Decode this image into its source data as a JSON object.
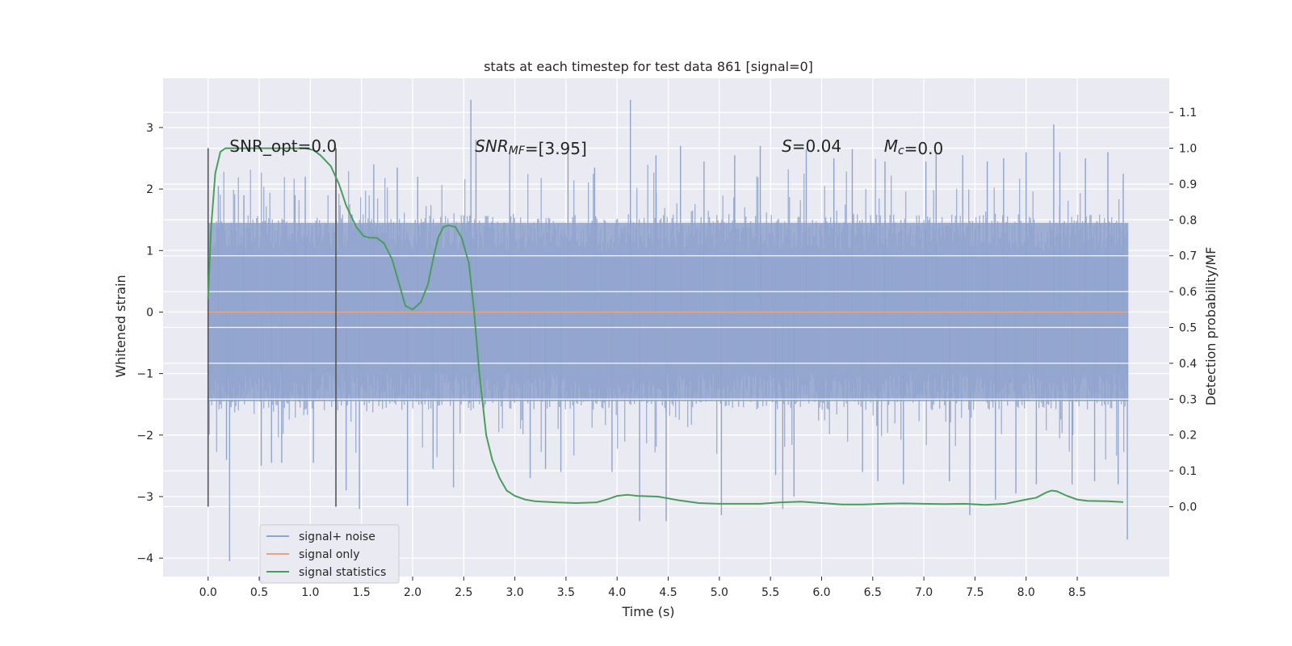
{
  "chart_data": {
    "type": "line",
    "title": "stats at each timestep for test data 861 [signal=0]",
    "xlabel": "Time (s)",
    "ylabel": "Whitened strain",
    "y2label": "Detection probability/MF",
    "xlim": [
      -0.44,
      9.4
    ],
    "ylim": [
      -4.3,
      3.8
    ],
    "y2lim": [
      -0.195,
      1.195
    ],
    "x_ticks": [
      0.0,
      0.5,
      1.0,
      1.5,
      2.0,
      2.5,
      3.0,
      3.5,
      4.0,
      4.5,
      5.0,
      5.5,
      6.0,
      6.5,
      7.0,
      7.5,
      8.0,
      8.5
    ],
    "x_tick_labels": [
      "0.0",
      "0.5",
      "1.0",
      "1.5",
      "2.0",
      "2.5",
      "3.0",
      "3.5",
      "4.0",
      "4.5",
      "5.0",
      "5.5",
      "6.0",
      "6.5",
      "7.0",
      "7.5",
      "8.0",
      "8.5"
    ],
    "y_ticks": [
      -4,
      -3,
      -2,
      -1,
      0,
      1,
      2,
      3
    ],
    "y_tick_labels": [
      "−4",
      "−3",
      "−2",
      "−1",
      "0",
      "1",
      "2",
      "3"
    ],
    "y2_ticks": [
      0.0,
      0.1,
      0.2,
      0.3,
      0.4,
      0.5,
      0.6,
      0.7,
      0.8,
      0.9,
      1.0,
      1.1
    ],
    "y2_tick_labels": [
      "0.0",
      "0.1",
      "0.2",
      "0.3",
      "0.4",
      "0.5",
      "0.6",
      "0.7",
      "0.8",
      "0.9",
      "1.0",
      "1.1"
    ],
    "grid": true,
    "legend_position": "lower-left",
    "vlines": [
      {
        "x": 0.0,
        "y2_from": 0.0,
        "y2_to": 1.0
      },
      {
        "x": 1.25,
        "y2_from": 0.0,
        "y2_to": 1.0
      }
    ],
    "annotations": [
      {
        "x": 0.21,
        "y2": 0.99,
        "parts": [
          {
            "t": "SNR_opt=0.0"
          }
        ]
      },
      {
        "x": 2.61,
        "y2": 0.99,
        "parts": [
          {
            "t": "SNR",
            "style": "italic"
          },
          {
            "t": "MF",
            "style": "italic-sub"
          },
          {
            "t": "=[3.95]"
          }
        ]
      },
      {
        "x": 5.61,
        "y2": 0.99,
        "parts": [
          {
            "t": "S",
            "style": "italic"
          },
          {
            "t": "=0.04"
          }
        ]
      },
      {
        "x": 6.61,
        "y2": 0.99,
        "parts": [
          {
            "t": "M",
            "style": "italic"
          },
          {
            "t": "c",
            "style": "italic-sub"
          },
          {
            "t": "=0.0"
          }
        ]
      }
    ],
    "series": [
      {
        "name": "signal+ noise",
        "color": "#8fa3cc",
        "axis": "left",
        "x_range": [
          0.0,
          9.0
        ],
        "band": [
          -1.45,
          1.45
        ],
        "spikes": [
          [
            0.1,
            2.05
          ],
          [
            0.18,
            -2.4
          ],
          [
            0.21,
            -4.05
          ],
          [
            0.35,
            1.9
          ],
          [
            0.52,
            -2.5
          ],
          [
            0.62,
            -2.45
          ],
          [
            0.72,
            -2.45
          ],
          [
            0.85,
            1.9
          ],
          [
            0.95,
            2.2
          ],
          [
            1.03,
            -2.45
          ],
          [
            1.35,
            -2.9
          ],
          [
            1.48,
            -3.2
          ],
          [
            1.62,
            2.4
          ],
          [
            1.85,
            2.35
          ],
          [
            1.95,
            -3.15
          ],
          [
            2.05,
            2.2
          ],
          [
            2.2,
            -2.55
          ],
          [
            2.4,
            -2.85
          ],
          [
            2.57,
            3.45
          ],
          [
            2.62,
            2.8
          ],
          [
            2.95,
            2.6
          ],
          [
            3.15,
            -2.7
          ],
          [
            3.3,
            -2.55
          ],
          [
            3.45,
            -2.6
          ],
          [
            3.52,
            2.6
          ],
          [
            3.78,
            2.35
          ],
          [
            3.95,
            -2.6
          ],
          [
            4.13,
            3.45
          ],
          [
            4.22,
            -3.4
          ],
          [
            4.38,
            2.55
          ],
          [
            4.48,
            -3.4
          ],
          [
            4.62,
            2.7
          ],
          [
            4.85,
            2.45
          ],
          [
            5.02,
            -3.3
          ],
          [
            5.15,
            2.55
          ],
          [
            5.4,
            2.7
          ],
          [
            5.55,
            -2.65
          ],
          [
            5.62,
            -3.2
          ],
          [
            5.73,
            -3.0
          ],
          [
            5.85,
            2.65
          ],
          [
            6.12,
            2.5
          ],
          [
            6.3,
            2.65
          ],
          [
            6.4,
            -2.6
          ],
          [
            6.55,
            -2.75
          ],
          [
            6.62,
            2.45
          ],
          [
            6.8,
            -2.8
          ],
          [
            7.02,
            2.45
          ],
          [
            7.12,
            2.6
          ],
          [
            7.25,
            -2.75
          ],
          [
            7.38,
            2.55
          ],
          [
            7.45,
            -3.3
          ],
          [
            7.62,
            2.45
          ],
          [
            7.7,
            -3.05
          ],
          [
            7.78,
            2.5
          ],
          [
            7.9,
            -2.95
          ],
          [
            8.0,
            2.6
          ],
          [
            8.1,
            -2.8
          ],
          [
            8.27,
            3.05
          ],
          [
            8.33,
            2.6
          ],
          [
            8.45,
            -2.8
          ],
          [
            8.58,
            2.5
          ],
          [
            8.67,
            -2.75
          ],
          [
            8.8,
            2.6
          ],
          [
            8.9,
            -2.8
          ],
          [
            8.95,
            2.25
          ],
          [
            8.99,
            -3.7
          ]
        ]
      },
      {
        "name": "signal only",
        "color": "#e0a58a",
        "axis": "left",
        "x": [
          0.0,
          9.0
        ],
        "y": [
          0.0,
          0.0
        ]
      },
      {
        "name": "signal statistics",
        "color": "#4a9e5c",
        "axis": "right",
        "x": [
          0.0,
          0.03,
          0.07,
          0.12,
          0.17,
          0.25,
          0.4,
          0.6,
          0.8,
          0.95,
          1.03,
          1.1,
          1.2,
          1.28,
          1.35,
          1.45,
          1.52,
          1.58,
          1.65,
          1.72,
          1.8,
          1.87,
          1.93,
          2.0,
          2.08,
          2.15,
          2.2,
          2.25,
          2.3,
          2.35,
          2.42,
          2.48,
          2.55,
          2.6,
          2.65,
          2.72,
          2.78,
          2.85,
          2.92,
          3.0,
          3.1,
          3.2,
          3.4,
          3.6,
          3.8,
          3.9,
          4.0,
          4.1,
          4.2,
          4.4,
          4.6,
          4.8,
          5.0,
          5.2,
          5.4,
          5.6,
          5.8,
          6.0,
          6.2,
          6.4,
          6.6,
          6.8,
          7.0,
          7.2,
          7.4,
          7.6,
          7.8,
          8.0,
          8.1,
          8.2,
          8.25,
          8.3,
          8.4,
          8.5,
          8.6,
          8.8,
          8.95
        ],
        "y": [
          0.58,
          0.78,
          0.93,
          0.99,
          1.0,
          1.0,
          1.0,
          1.0,
          1.0,
          1.0,
          0.995,
          0.98,
          0.95,
          0.9,
          0.84,
          0.78,
          0.755,
          0.75,
          0.75,
          0.735,
          0.69,
          0.62,
          0.56,
          0.55,
          0.57,
          0.62,
          0.69,
          0.75,
          0.78,
          0.785,
          0.78,
          0.75,
          0.68,
          0.55,
          0.38,
          0.2,
          0.13,
          0.08,
          0.045,
          0.03,
          0.02,
          0.015,
          0.012,
          0.01,
          0.012,
          0.02,
          0.03,
          0.033,
          0.03,
          0.028,
          0.018,
          0.01,
          0.008,
          0.008,
          0.008,
          0.012,
          0.014,
          0.01,
          0.006,
          0.006,
          0.008,
          0.009,
          0.008,
          0.007,
          0.008,
          0.005,
          0.008,
          0.02,
          0.025,
          0.04,
          0.045,
          0.043,
          0.03,
          0.02,
          0.016,
          0.015,
          0.013
        ]
      }
    ]
  }
}
